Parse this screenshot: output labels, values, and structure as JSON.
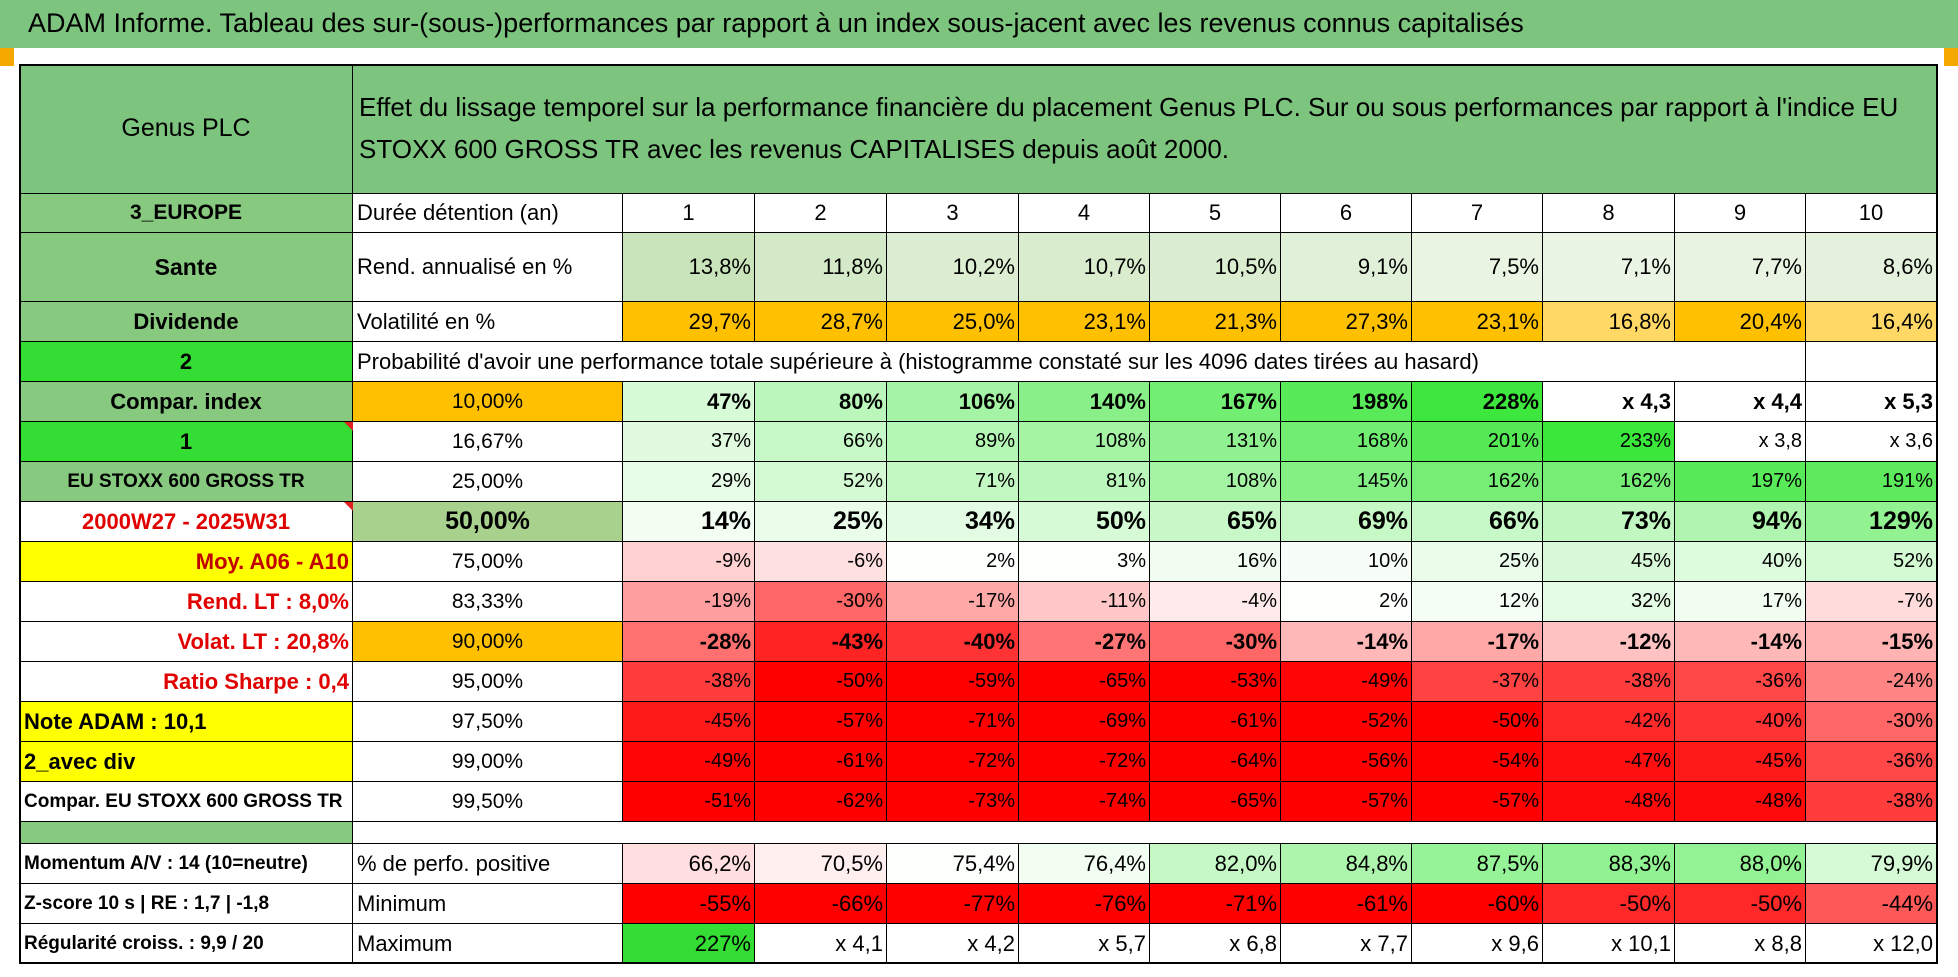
{
  "header": {
    "title": "ADAM Informe. Tableau des sur-(sous-)performances par rapport à un index sous-jacent avec les revenus connus capitalisés"
  },
  "left": {
    "company": "Genus PLC",
    "region": "3_EUROPE",
    "sector": "Sante",
    "dividende": "Dividende",
    "code_2": "2",
    "compar_index": "Compar. index",
    "code_1": "1",
    "index_name": "EU STOXX 600 GROSS TR",
    "period": "2000W27 - 2025W31",
    "moy": "Moy. A06 - A10",
    "rend_lt": "Rend. LT :    8,0%",
    "volat_lt": "Volat. LT :    20,8%",
    "sharpe": "Ratio Sharpe :    0,4",
    "note": "Note ADAM : 10,1",
    "avec_div": "2_avec div",
    "compar": "Compar. EU STOXX 600 GROSS TR",
    "momentum": "Momentum A/V : 14 (10=neutre)",
    "zscore": "Z-score 10 s | RE : 1,7 | -1,8",
    "regularite": "Régularité croiss. : 9,9 / 20"
  },
  "description": "Effet du lissage temporel sur la performance financière du placement Genus PLC. Sur ou sous performances par rapport à l'indice EU STOXX 600 GROSS TR avec les revenus CAPITALISES depuis août 2000.",
  "durations": {
    "label": "Durée détention (an)",
    "values": [
      "1",
      "2",
      "3",
      "4",
      "5",
      "6",
      "7",
      "8",
      "9",
      "10"
    ]
  },
  "rend": {
    "label": "Rend. annualisé en %",
    "values": [
      "13,8%",
      "11,8%",
      "10,2%",
      "10,7%",
      "10,5%",
      "9,1%",
      "7,5%",
      "7,1%",
      "7,7%",
      "8,6%"
    ]
  },
  "volat": {
    "label": "Volatilité en %",
    "values": [
      "29,7%",
      "28,7%",
      "25,0%",
      "23,1%",
      "21,3%",
      "27,3%",
      "23,1%",
      "16,8%",
      "20,4%",
      "16,4%"
    ]
  },
  "prob_title": "Probabilité d'avoir une performance totale supérieure à (histogramme constaté sur les 4096 dates tirées au hasard)",
  "prob_rows": [
    {
      "pct": "10,00%",
      "values": [
        "47%",
        "80%",
        "106%",
        "140%",
        "167%",
        "198%",
        "228%",
        "x 4,3",
        "x 4,4",
        "x 5,3"
      ]
    },
    {
      "pct": "16,67%",
      "values": [
        "37%",
        "66%",
        "89%",
        "108%",
        "131%",
        "168%",
        "201%",
        "233%",
        "x 3,8",
        "x 3,6"
      ]
    },
    {
      "pct": "25,00%",
      "values": [
        "29%",
        "52%",
        "71%",
        "81%",
        "108%",
        "145%",
        "162%",
        "162%",
        "197%",
        "191%"
      ]
    },
    {
      "pct": "50,00%",
      "values": [
        "14%",
        "25%",
        "34%",
        "50%",
        "65%",
        "69%",
        "66%",
        "73%",
        "94%",
        "129%"
      ]
    },
    {
      "pct": "75,00%",
      "values": [
        "-9%",
        "-6%",
        "2%",
        "3%",
        "16%",
        "10%",
        "25%",
        "45%",
        "40%",
        "52%"
      ]
    },
    {
      "pct": "83,33%",
      "values": [
        "-19%",
        "-30%",
        "-17%",
        "-11%",
        "-4%",
        "2%",
        "12%",
        "32%",
        "17%",
        "-7%"
      ]
    },
    {
      "pct": "90,00%",
      "values": [
        "-28%",
        "-43%",
        "-40%",
        "-27%",
        "-30%",
        "-14%",
        "-17%",
        "-12%",
        "-14%",
        "-15%"
      ]
    },
    {
      "pct": "95,00%",
      "values": [
        "-38%",
        "-50%",
        "-59%",
        "-65%",
        "-53%",
        "-49%",
        "-37%",
        "-38%",
        "-36%",
        "-24%"
      ]
    },
    {
      "pct": "97,50%",
      "values": [
        "-45%",
        "-57%",
        "-71%",
        "-69%",
        "-61%",
        "-52%",
        "-50%",
        "-42%",
        "-40%",
        "-30%"
      ]
    },
    {
      "pct": "99,00%",
      "values": [
        "-49%",
        "-61%",
        "-72%",
        "-72%",
        "-64%",
        "-56%",
        "-54%",
        "-47%",
        "-45%",
        "-36%"
      ]
    },
    {
      "pct": "99,50%",
      "values": [
        "-51%",
        "-62%",
        "-73%",
        "-74%",
        "-65%",
        "-57%",
        "-57%",
        "-48%",
        "-48%",
        "-38%"
      ]
    }
  ],
  "stats": [
    {
      "label": "% de perfo. positive",
      "values": [
        "66,2%",
        "70,5%",
        "75,4%",
        "76,4%",
        "82,0%",
        "84,8%",
        "87,5%",
        "88,3%",
        "88,0%",
        "79,9%"
      ]
    },
    {
      "label": "Minimum",
      "values": [
        "-55%",
        "-66%",
        "-77%",
        "-76%",
        "-71%",
        "-61%",
        "-60%",
        "-50%",
        "-50%",
        "-44%"
      ]
    },
    {
      "label": "Maximum",
      "values": [
        "227%",
        "x 4,1",
        "x 4,2",
        "x 5,7",
        "x 6,8",
        "x 7,7",
        "x 9,6",
        "x 10,1",
        "x 8,8",
        "x 12,0"
      ]
    }
  ],
  "colors": {
    "header_green": "#7dc57f",
    "bright_green": "#33dd33",
    "orange": "#ffc000",
    "yellow": "#ffff00",
    "olive": "#a9d18e",
    "red": "#ff0000"
  }
}
